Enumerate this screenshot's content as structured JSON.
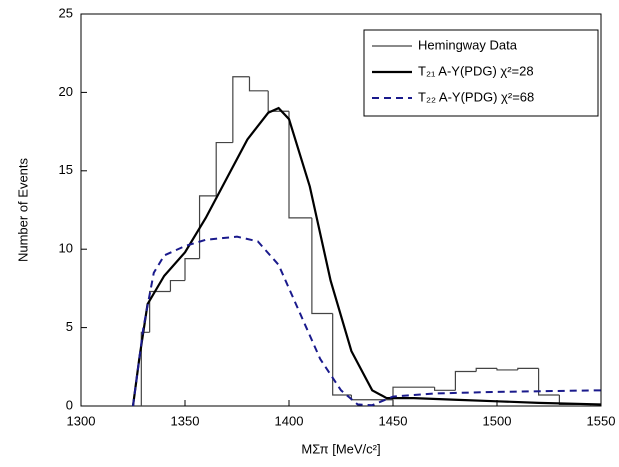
{
  "chart_data": {
    "type": "line",
    "xlabel": "MΣπ [MeV/c²]",
    "ylabel": "Number of Events",
    "xlim": [
      1300,
      1550
    ],
    "xticks": [
      1300,
      1350,
      1400,
      1450,
      1500,
      1550
    ],
    "ylim": [
      0,
      25
    ],
    "yticks": [
      0,
      5,
      10,
      15,
      20,
      25
    ],
    "legend": "upper right",
    "series": [
      {
        "name": "Hemingway Data",
        "color": "#444444",
        "line_style": "steps",
        "bins": [
          1329,
          1333,
          1343,
          1350,
          1357,
          1365,
          1373,
          1381,
          1390,
          1400,
          1411,
          1421,
          1430,
          1450,
          1470,
          1480,
          1490,
          1500,
          1510,
          1520,
          1530,
          1545
        ],
        "values": [
          4.7,
          7.3,
          8.0,
          9.4,
          13.4,
          16.8,
          21.0,
          20.1,
          18.8,
          12.0,
          5.9,
          0.7,
          0.4,
          1.2,
          1.0,
          2.2,
          2.4,
          2.3,
          2.4,
          0.7,
          0.1
        ]
      },
      {
        "name": "T₂₁ A-Y(PDG)  χ²=28",
        "color": "#000000",
        "line_style": "solid",
        "x": [
          1325,
          1328,
          1332,
          1340,
          1350,
          1360,
          1370,
          1380,
          1390,
          1395,
          1400,
          1410,
          1420,
          1430,
          1440,
          1447,
          1460,
          1480,
          1500,
          1520,
          1550
        ],
        "values": [
          0,
          3,
          6.5,
          8.3,
          9.8,
          12,
          14.5,
          17,
          18.7,
          19,
          18.3,
          14,
          8,
          3.5,
          1.0,
          0.5,
          0.5,
          0.4,
          0.3,
          0.2,
          0.1
        ]
      },
      {
        "name": "T₂₂ A-Y(PDG)  χ²=68",
        "color": "#1a1a8c",
        "line_style": "dashed",
        "x": [
          1325,
          1330,
          1335,
          1340,
          1350,
          1360,
          1375,
          1385,
          1395,
          1405,
          1415,
          1425,
          1433,
          1440,
          1450,
          1470,
          1500,
          1550
        ],
        "values": [
          0,
          5,
          8.5,
          9.6,
          10.2,
          10.6,
          10.8,
          10.5,
          9,
          6,
          3,
          1,
          0.1,
          0.05,
          0.6,
          0.8,
          0.9,
          1.0
        ]
      }
    ]
  }
}
